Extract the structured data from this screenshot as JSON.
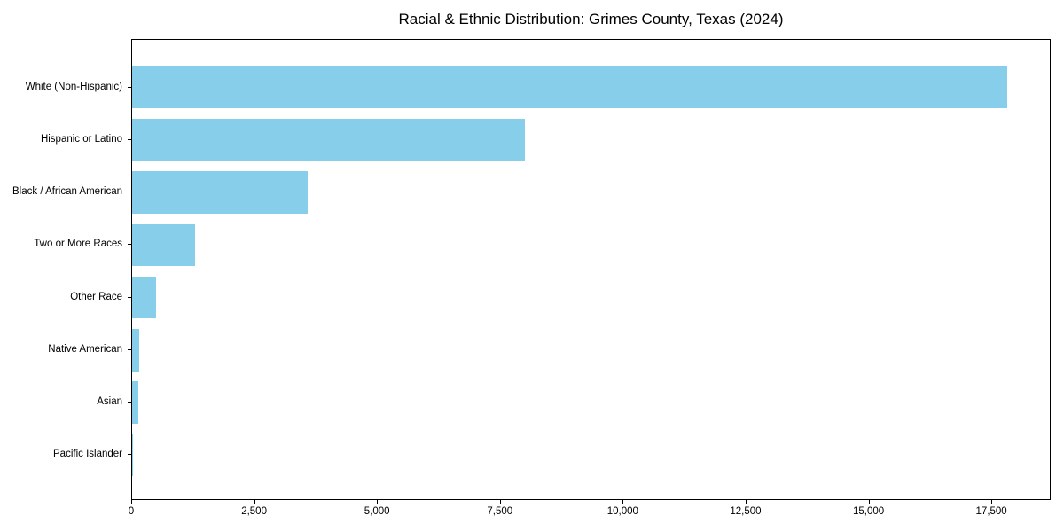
{
  "figure": {
    "background": "#ffffff"
  },
  "chart_data": {
    "type": "bar",
    "orientation": "horizontal",
    "title": "Racial & Ethnic Distribution: Grimes County, Texas (2024)",
    "categories": [
      "White (Non-Hispanic)",
      "Hispanic or Latino",
      "Black / African American",
      "Two or More Races",
      "Other Race",
      "Native American",
      "Asian",
      "Pacific Islander"
    ],
    "values": [
      17800,
      8000,
      3580,
      1280,
      490,
      145,
      135,
      15
    ],
    "xlabel": "",
    "ylabel": "",
    "xticks": [
      0,
      2500,
      5000,
      7500,
      10000,
      12500,
      15000,
      17500
    ],
    "xtick_labels": [
      "0",
      "2,500",
      "5,000",
      "7,500",
      "10,000",
      "12,500",
      "15,000",
      "17,500"
    ],
    "xlim": [
      0,
      18670
    ],
    "ylim_rows": 8,
    "bar_color": "#87CEEB",
    "spine_color": "#000000",
    "text_color": "#000000",
    "grid": false,
    "legend": null
  }
}
